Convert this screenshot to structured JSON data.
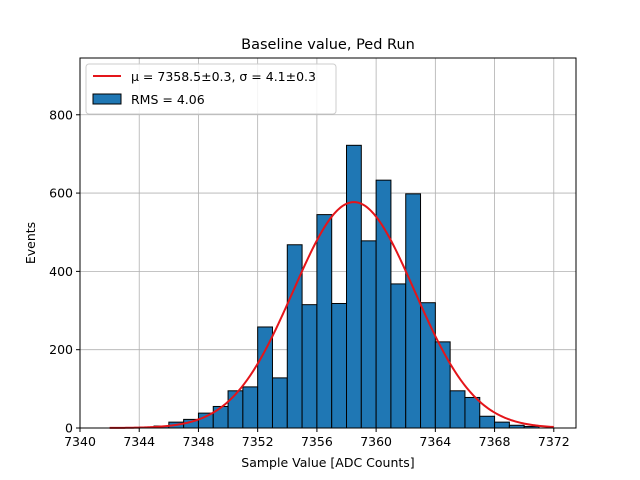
{
  "chart_data": {
    "type": "bar",
    "title": "Baseline value, Ped Run",
    "xlabel": "Sample Value [ADC Counts]",
    "ylabel": "Events",
    "xlim": [
      7340,
      7373.5
    ],
    "ylim": [
      0,
      945
    ],
    "xticks": [
      7340,
      7344,
      7348,
      7352,
      7356,
      7360,
      7364,
      7368,
      7372
    ],
    "yticks": [
      0,
      200,
      400,
      600,
      800
    ],
    "grid": true,
    "legend_position": "top-left",
    "bin_width": 1,
    "bins": [
      {
        "left": 7344,
        "value": 2
      },
      {
        "left": 7345,
        "value": 5
      },
      {
        "left": 7346,
        "value": 15
      },
      {
        "left": 7347,
        "value": 22
      },
      {
        "left": 7348,
        "value": 38
      },
      {
        "left": 7349,
        "value": 55
      },
      {
        "left": 7350,
        "value": 95
      },
      {
        "left": 7351,
        "value": 105
      },
      {
        "left": 7352,
        "value": 258
      },
      {
        "left": 7353,
        "value": 128
      },
      {
        "left": 7354,
        "value": 468
      },
      {
        "left": 7355,
        "value": 315
      },
      {
        "left": 7356,
        "value": 545
      },
      {
        "left": 7357,
        "value": 318
      },
      {
        "left": 7358,
        "value": 722
      },
      {
        "left": 7359,
        "value": 478
      },
      {
        "left": 7360,
        "value": 633
      },
      {
        "left": 7361,
        "value": 368
      },
      {
        "left": 7362,
        "value": 598
      },
      {
        "left": 7363,
        "value": 320
      },
      {
        "left": 7364,
        "value": 220
      },
      {
        "left": 7365,
        "value": 95
      },
      {
        "left": 7366,
        "value": 78
      },
      {
        "left": 7367,
        "value": 30
      },
      {
        "left": 7368,
        "value": 15
      },
      {
        "left": 7369,
        "value": 7
      },
      {
        "left": 7370,
        "value": 4
      }
    ],
    "fit": {
      "type": "gaussian",
      "mu": 7358.5,
      "sigma": 4.1,
      "amplitude": 577,
      "x_range": [
        7342,
        7372
      ]
    },
    "series": [
      {
        "name": "μ = 7358.5±0.3, σ = 4.1±0.3",
        "color": "#e4151a",
        "kind": "line"
      },
      {
        "name": "RMS = 4.06",
        "color": "#1f77b4",
        "kind": "bar"
      }
    ]
  }
}
